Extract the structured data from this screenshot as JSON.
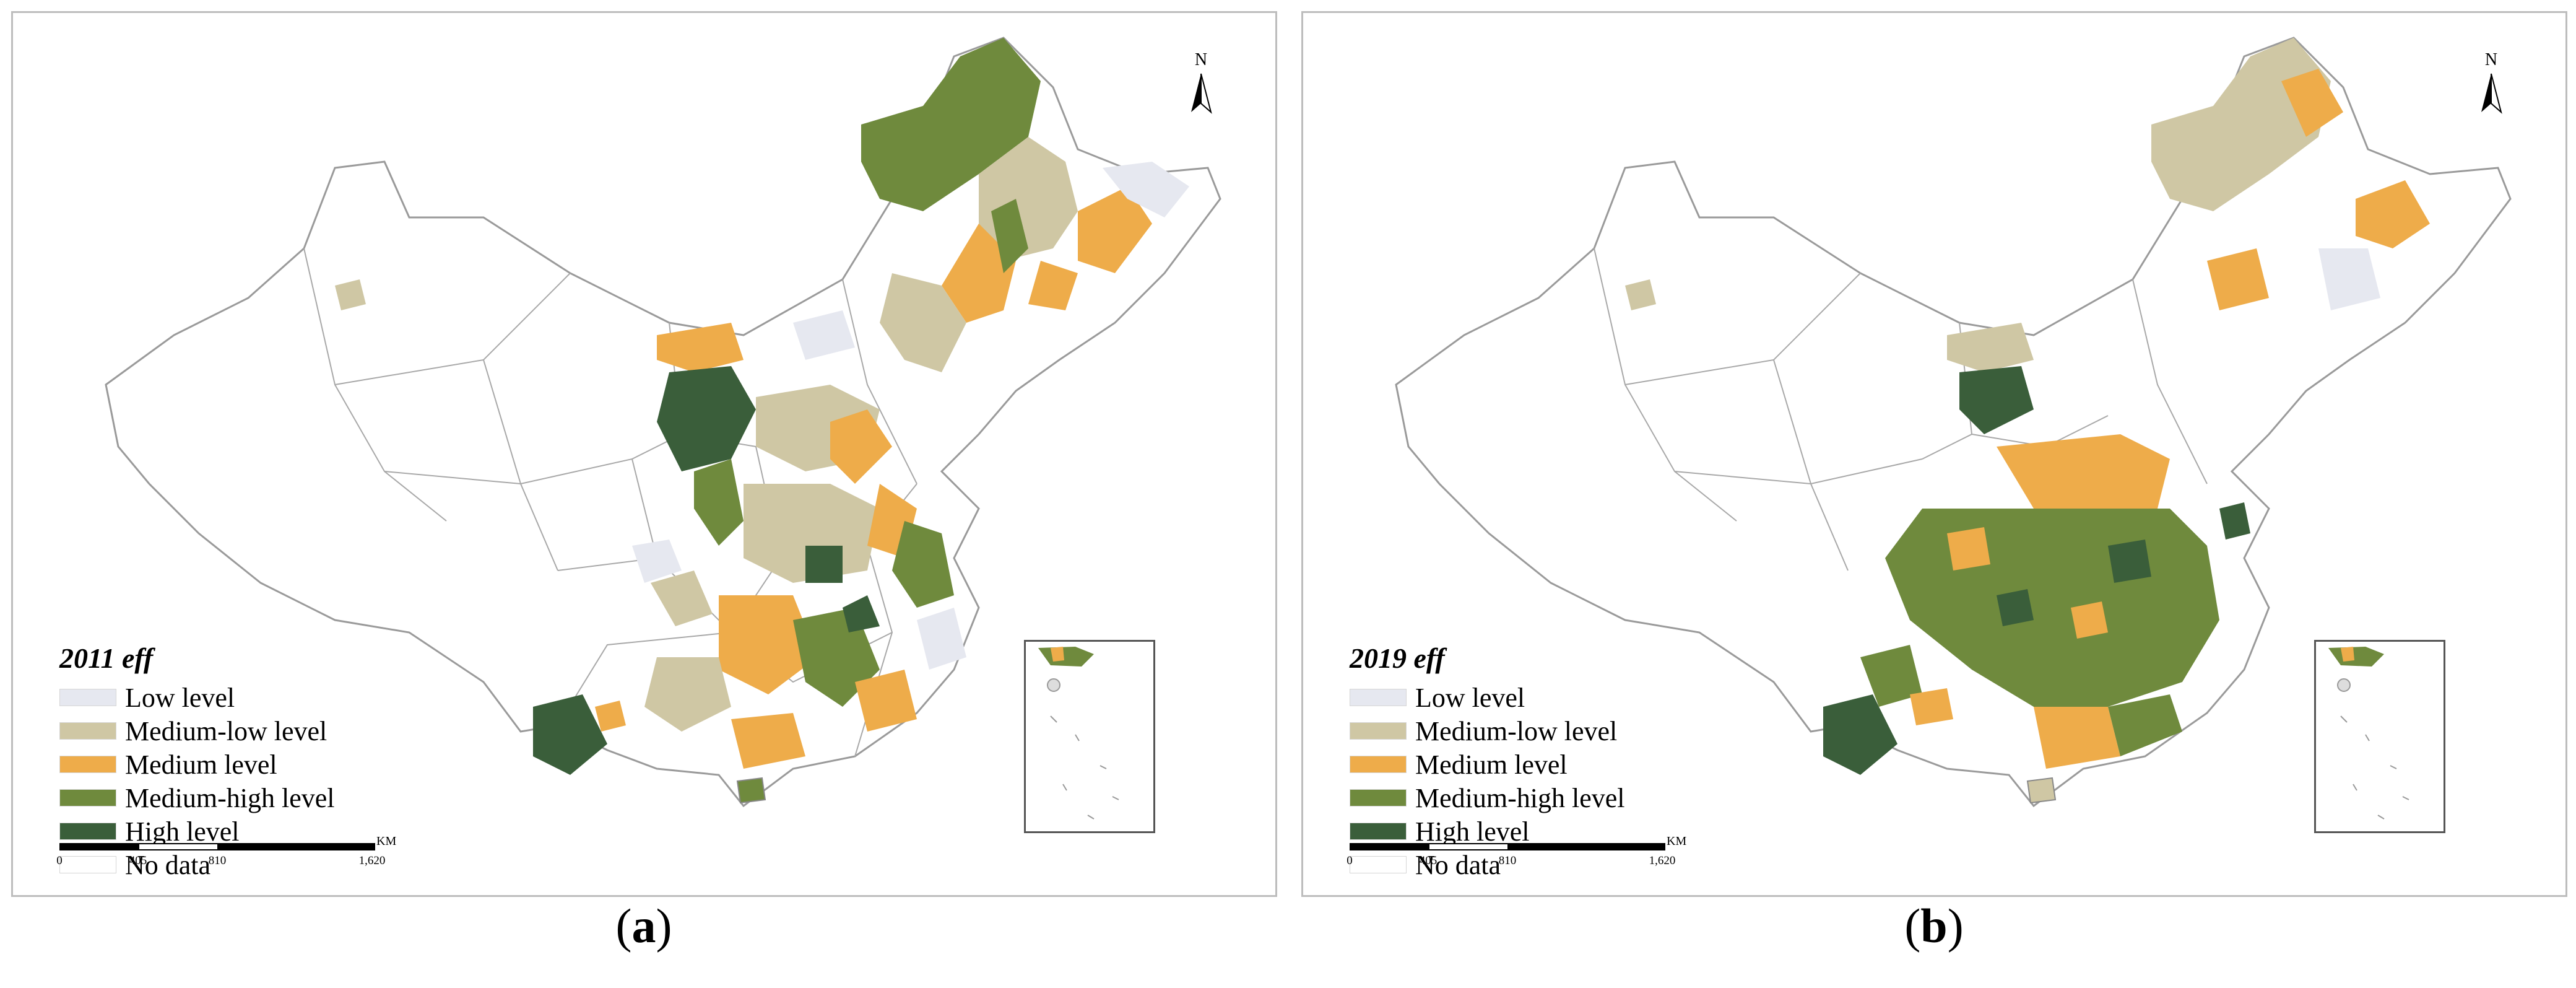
{
  "panels": [
    {
      "id": "a",
      "legend_title": "2011 eff",
      "caption_prefix": "(",
      "caption_letter": "a",
      "caption_suffix": ")"
    },
    {
      "id": "b",
      "legend_title": "2019 eff",
      "caption_prefix": "(",
      "caption_letter": "b",
      "caption_suffix": ")"
    }
  ],
  "legend": [
    {
      "label": "Low level",
      "color": "#e6e8f0"
    },
    {
      "label": "Medium-low level",
      "color": "#cfc7a4"
    },
    {
      "label": "Medium level",
      "color": "#eeac4a"
    },
    {
      "label": "Medium-high level",
      "color": "#6f8a3d"
    },
    {
      "label": "High level",
      "color": "#3a5e3a"
    },
    {
      "label": "No data",
      "color": "#ffffff"
    }
  ],
  "scale": {
    "unit": "KM",
    "ticks": [
      "0",
      "405",
      "810",
      "1,620"
    ]
  },
  "north": {
    "letter": "N",
    "icon": "north-arrow-icon"
  }
}
